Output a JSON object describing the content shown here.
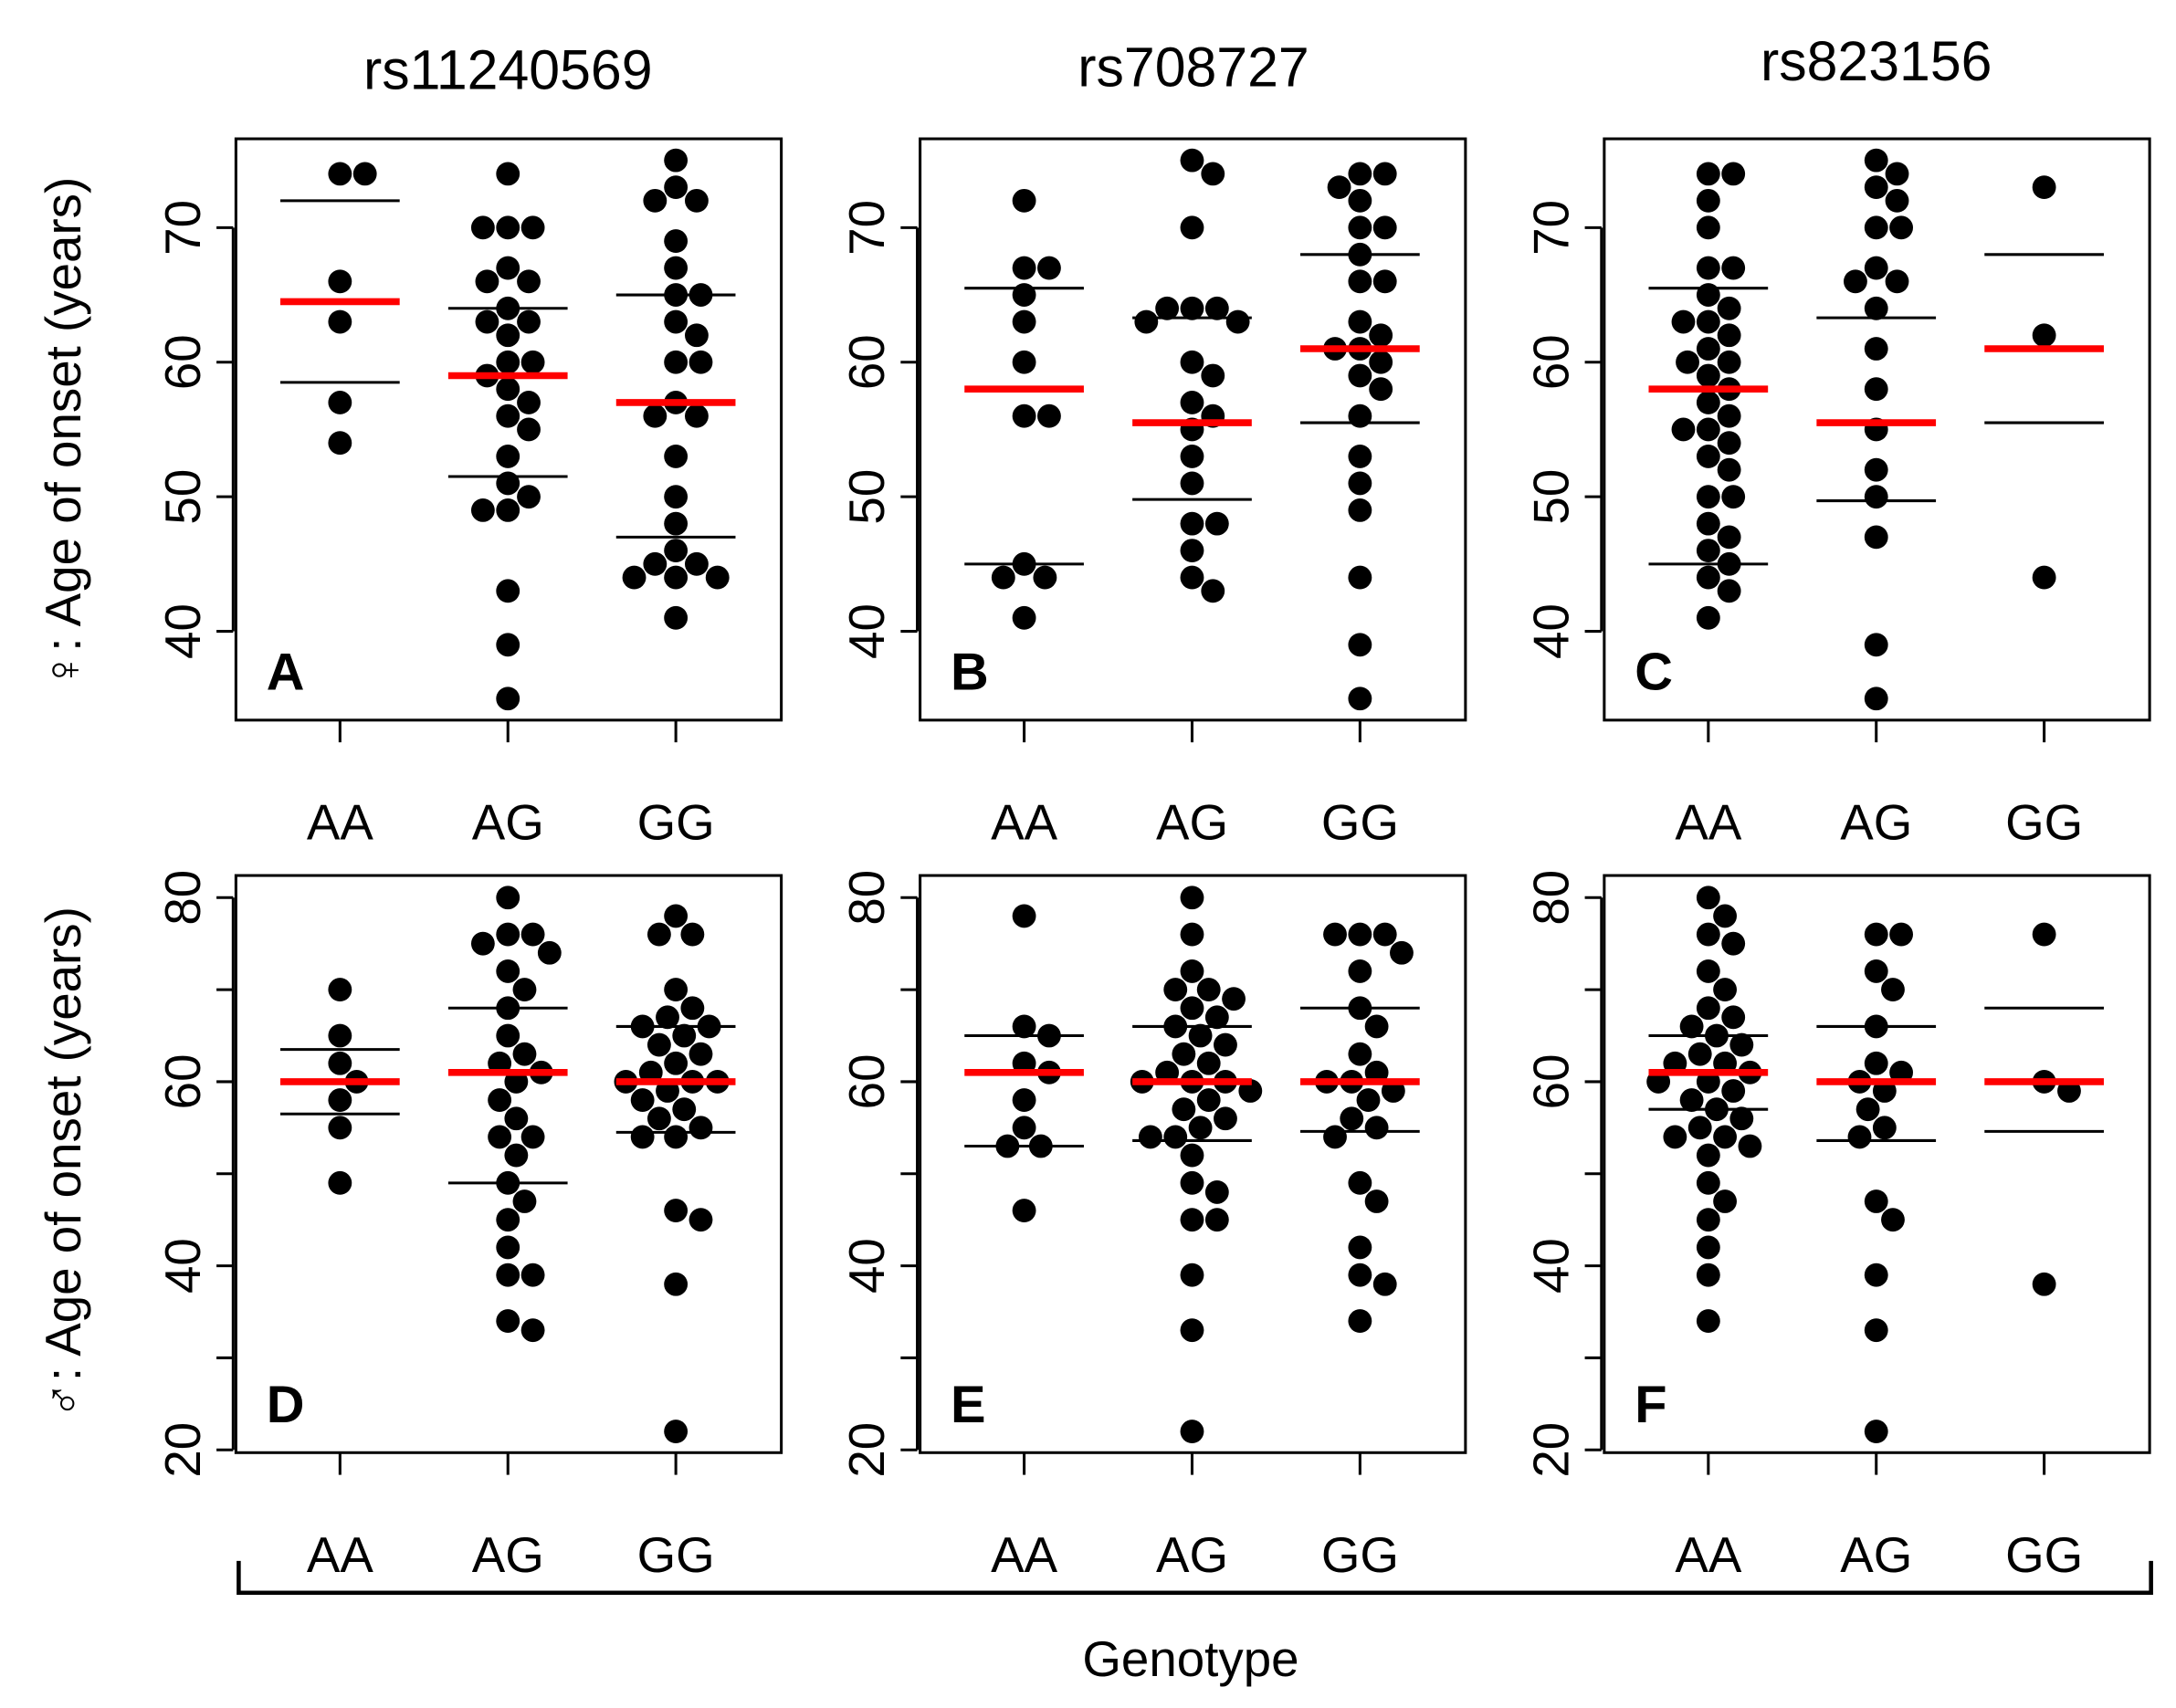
{
  "column_titles": [
    "rs11240569",
    "rs708727",
    "rs823156"
  ],
  "y_labels": [
    "♀: Age of onset (years)",
    "♂: Age of onset (years)"
  ],
  "x_label": "Genotype",
  "chart_data": [
    {
      "type": "strip",
      "label": "A",
      "categories": [
        "AA",
        "AG",
        "GG"
      ],
      "values": [
        [
          74,
          74,
          66,
          63,
          57,
          54
        ],
        [
          74,
          70,
          70,
          70,
          67,
          66,
          66,
          64,
          63,
          63,
          62,
          60,
          60,
          59,
          58,
          57,
          56,
          55,
          53,
          51,
          50,
          49,
          49,
          43,
          39,
          35
        ],
        [
          75,
          73,
          72,
          72,
          69,
          67,
          65,
          65,
          63,
          62,
          60,
          60,
          57,
          56,
          56,
          53,
          50,
          48,
          46,
          45,
          45,
          44,
          44,
          44,
          41
        ]
      ],
      "means": [
        64.5,
        59,
        57
      ],
      "upper": [
        72,
        64,
        65
      ],
      "lower": [
        58.5,
        51.5,
        47
      ],
      "ylim": [
        33.4,
        76.6
      ],
      "yticks": [
        40,
        50,
        60,
        70
      ],
      "point_color": "#000000",
      "mean_color": "#ff0000"
    },
    {
      "type": "strip",
      "label": "B",
      "categories": [
        "AA",
        "AG",
        "GG"
      ],
      "values": [
        [
          72,
          67,
          67,
          65,
          63,
          60,
          56,
          56,
          45,
          44,
          44,
          41
        ],
        [
          75,
          74,
          70,
          64,
          64,
          64,
          63,
          63,
          60,
          59,
          57,
          56,
          55,
          53,
          51,
          48,
          48,
          46,
          44,
          43
        ],
        [
          74,
          74,
          73,
          72,
          70,
          70,
          68,
          66,
          66,
          63,
          62,
          61,
          61,
          60,
          59,
          58,
          56,
          53,
          51,
          49,
          44,
          39,
          35
        ]
      ],
      "means": [
        58,
        55.5,
        61
      ],
      "upper": [
        65.5,
        63.3,
        68
      ],
      "lower": [
        45,
        49.8,
        55.5
      ],
      "ylim": [
        33.4,
        76.6
      ],
      "yticks": [
        40,
        50,
        60,
        70
      ],
      "point_color": "#000000",
      "mean_color": "#ff0000"
    },
    {
      "type": "strip",
      "label": "C",
      "categories": [
        "AA",
        "AG",
        "GG"
      ],
      "values": [
        [
          74,
          74,
          72,
          70,
          67,
          67,
          65,
          64,
          63,
          63,
          62,
          61,
          60,
          60,
          59,
          58,
          57,
          56,
          55,
          55,
          54,
          53,
          52,
          50,
          50,
          48,
          47,
          46,
          45,
          44,
          43,
          41
        ],
        [
          75,
          74,
          73,
          72,
          70,
          70,
          67,
          66,
          66,
          64,
          61,
          58,
          55,
          52,
          50,
          47,
          39,
          35
        ],
        [
          73,
          62,
          44
        ]
      ],
      "means": [
        58,
        55.5,
        61
      ],
      "upper": [
        65.5,
        63.3,
        68
      ],
      "lower": [
        45,
        49.7,
        55.5
      ],
      "ylim": [
        33.4,
        76.6
      ],
      "yticks": [
        40,
        50,
        60,
        70
      ],
      "point_color": "#000000",
      "mean_color": "#ff0000"
    },
    {
      "type": "strip",
      "label": "D",
      "categories": [
        "AA",
        "AG",
        "GG"
      ],
      "values": [
        [
          70,
          65,
          62,
          60,
          58,
          55,
          49
        ],
        [
          80,
          76,
          76,
          75,
          74,
          72,
          70,
          68,
          65,
          63,
          62,
          61,
          60,
          58,
          56,
          54,
          54,
          52,
          49,
          47,
          45,
          42,
          39,
          39,
          34,
          33
        ],
        [
          78,
          76,
          76,
          70,
          68,
          67,
          66,
          66,
          65,
          64,
          63,
          62,
          61,
          60,
          60,
          60,
          59,
          58,
          57,
          56,
          55,
          54,
          54,
          46,
          45,
          38,
          22
        ]
      ],
      "means": [
        60,
        61,
        60
      ],
      "upper": [
        63.5,
        68,
        66
      ],
      "lower": [
        56.5,
        49,
        54.5
      ],
      "ylim": [
        19.7,
        82.4
      ],
      "yticks": [
        20,
        40,
        60,
        80
      ],
      "yminor_ticks": [
        30,
        50,
        70
      ],
      "point_color": "#000000",
      "mean_color": "#ff0000"
    },
    {
      "type": "strip",
      "label": "E",
      "categories": [
        "AA",
        "AG",
        "GG"
      ],
      "values": [
        [
          78,
          66,
          65,
          62,
          61,
          58,
          55,
          53,
          53,
          46
        ],
        [
          80,
          76,
          72,
          70,
          70,
          69,
          68,
          67,
          66,
          65,
          64,
          63,
          62,
          61,
          60,
          60,
          60,
          59,
          58,
          57,
          56,
          55,
          54,
          54,
          52,
          49,
          48,
          45,
          45,
          39,
          33,
          22
        ],
        [
          76,
          76,
          76,
          74,
          72,
          68,
          66,
          63,
          61,
          60,
          60,
          59,
          58,
          56,
          55,
          54,
          49,
          47,
          42,
          39,
          38,
          34
        ]
      ],
      "means": [
        61,
        60,
        60
      ],
      "upper": [
        65,
        66,
        68
      ],
      "lower": [
        53,
        53.6,
        54.6
      ],
      "ylim": [
        19.7,
        82.4
      ],
      "yticks": [
        20,
        40,
        60,
        80
      ],
      "yminor_ticks": [
        30,
        50,
        70
      ],
      "point_color": "#000000",
      "mean_color": "#ff0000"
    },
    {
      "type": "strip",
      "label": "F",
      "categories": [
        "AA",
        "AG",
        "GG"
      ],
      "values": [
        [
          80,
          78,
          76,
          75,
          72,
          70,
          68,
          67,
          66,
          65,
          64,
          63,
          62,
          62,
          61,
          60,
          60,
          59,
          58,
          57,
          56,
          55,
          54,
          54,
          53,
          52,
          49,
          47,
          45,
          42,
          39,
          34
        ],
        [
          76,
          76,
          72,
          70,
          66,
          62,
          61,
          60,
          59,
          57,
          55,
          54,
          47,
          45,
          39,
          33,
          22
        ],
        [
          76,
          60,
          59,
          38
        ]
      ],
      "means": [
        61,
        60,
        60
      ],
      "upper": [
        65,
        66,
        68
      ],
      "lower": [
        57,
        53.6,
        54.6
      ],
      "ylim": [
        19.7,
        82.4
      ],
      "yticks": [
        20,
        40,
        60,
        80
      ],
      "yminor_ticks": [
        30,
        50,
        70
      ],
      "point_color": "#000000",
      "mean_color": "#ff0000"
    }
  ]
}
